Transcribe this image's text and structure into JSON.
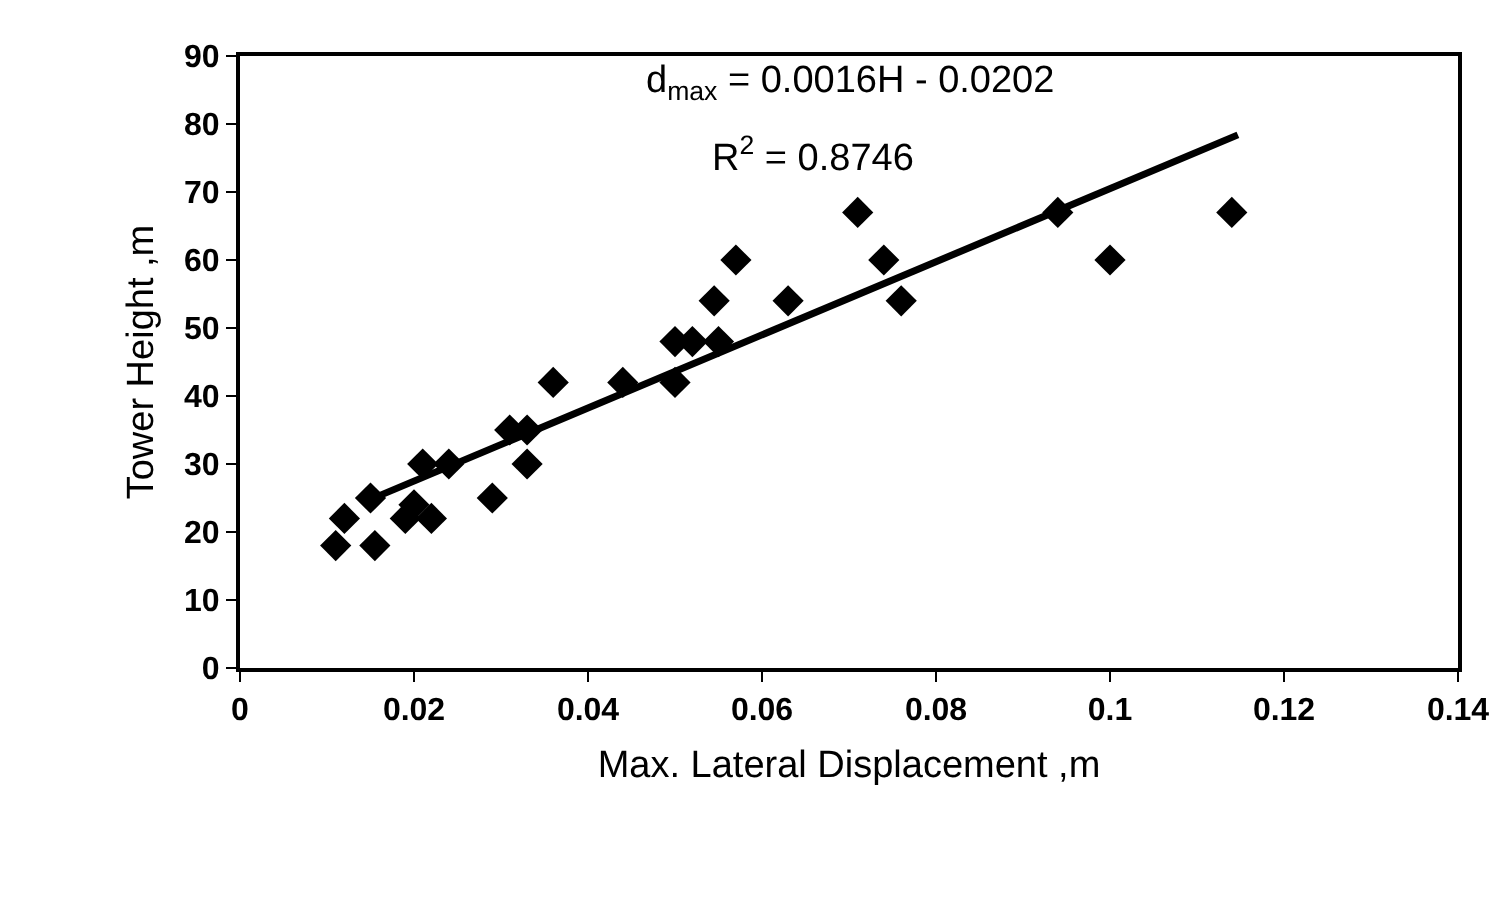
{
  "chart_data": {
    "type": "scatter",
    "xlabel": "Max. Lateral Displacement ,m",
    "ylabel": "Tower Height ,m",
    "annotations": [
      "d$_{max}$ = 0.0016H - 0.0202",
      "R$^{2}$ = 0.8746"
    ],
    "xlim": [
      0,
      0.14
    ],
    "xticks": [
      0,
      0.02,
      0.04,
      0.06,
      0.08,
      0.1,
      0.12,
      0.14
    ],
    "ylim": [
      0,
      90
    ],
    "yticks": [
      0,
      10,
      20,
      30,
      40,
      50,
      60,
      70,
      80,
      90
    ],
    "grid": false,
    "marker": "diamond",
    "series": [
      {
        "color": "#000000",
        "x": [
          0.011,
          0.012,
          0.015,
          0.0155,
          0.019,
          0.02,
          0.021,
          0.022,
          0.024,
          0.029,
          0.031,
          0.033,
          0.033,
          0.036,
          0.044,
          0.05,
          0.05,
          0.052,
          0.055,
          0.0545,
          0.057,
          0.063,
          0.071,
          0.074,
          0.076,
          0.094,
          0.1,
          0.114
        ],
        "values": [
          18,
          22,
          25,
          18,
          22,
          24,
          30,
          22,
          30,
          25,
          35,
          30,
          35,
          42,
          42,
          42,
          48,
          48,
          48,
          54,
          60,
          54,
          67,
          60,
          54,
          67,
          60,
          67
        ]
      },
      {
        "type": "line",
        "color": "#000000",
        "line_style": "solid",
        "marker": "none",
        "x": [
          0.015,
          0.1147
        ],
        "values": [
          24.8,
          78.4
        ]
      }
    ]
  }
}
